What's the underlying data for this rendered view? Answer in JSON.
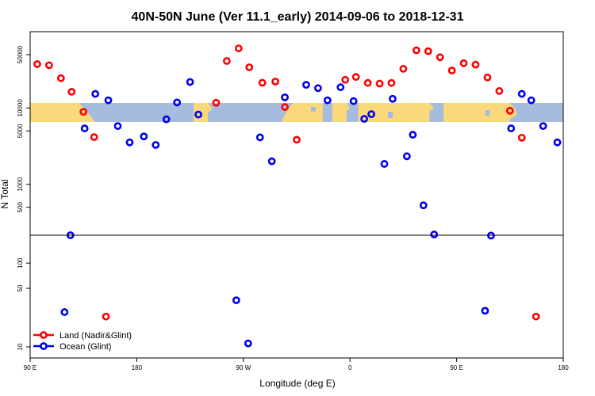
{
  "chart_data": {
    "type": "scatter",
    "title": "40N-50N June (Ver 11.1_early)   2014-09-06 to 2018-12-31",
    "xlabel": "Longitude (deg E)",
    "ylabel": "N Total",
    "x_ticks": [
      {
        "value": 90,
        "label": "90 E"
      },
      {
        "value": 180,
        "label": "180"
      },
      {
        "value": 270,
        "label": "90 W"
      },
      {
        "value": 360,
        "label": "0"
      },
      {
        "value": 450,
        "label": "90 E"
      },
      {
        "value": 540,
        "label": "180"
      }
    ],
    "y_ticks": [
      {
        "value": 10,
        "label": "10"
      },
      {
        "value": 50,
        "label": "50"
      },
      {
        "value": 100,
        "label": "100"
      },
      {
        "value": 500,
        "label": "500"
      },
      {
        "value": 1000,
        "label": "1000"
      },
      {
        "value": 5000,
        "label": "5000"
      },
      {
        "value": 10000,
        "label": "10000"
      },
      {
        "value": 50000,
        "label": "50000"
      }
    ],
    "scale_note": "log scale, broken axis at ~215 (lower panel 10-215, upper panel 215-100000)",
    "map_band_latitude": "40N-50N",
    "colors": {
      "land": "#ff0000",
      "ocean": "#0000ee",
      "map_ocean": "#a5bcdf",
      "map_land": "#f9d97a"
    },
    "legend": {
      "position": "bottom-left",
      "entries": [
        {
          "name": "Land (Nadir&Glint)",
          "color": "#ff0000"
        },
        {
          "name": "Ocean (Glint)",
          "color": "#0000ee"
        }
      ]
    },
    "series": [
      {
        "name": "Land (Nadir&Glint)",
        "color": "#ff0000",
        "points": [
          {
            "x": 96,
            "y": 37600
          },
          {
            "x": 106,
            "y": 36300
          },
          {
            "x": 116,
            "y": 24600
          },
          {
            "x": 125,
            "y": 16300
          },
          {
            "x": 135,
            "y": 8900
          },
          {
            "x": 144,
            "y": 4150
          },
          {
            "x": 154,
            "y": 23
          },
          {
            "x": 247,
            "y": 11700
          },
          {
            "x": 256,
            "y": 41300
          },
          {
            "x": 266,
            "y": 60400
          },
          {
            "x": 275,
            "y": 34100
          },
          {
            "x": 286,
            "y": 21400
          },
          {
            "x": 297,
            "y": 22200
          },
          {
            "x": 305,
            "y": 10300
          },
          {
            "x": 315,
            "y": 3840
          },
          {
            "x": 356,
            "y": 23400
          },
          {
            "x": 365,
            "y": 25500
          },
          {
            "x": 375,
            "y": 21300
          },
          {
            "x": 385,
            "y": 20900
          },
          {
            "x": 395,
            "y": 21300
          },
          {
            "x": 405,
            "y": 32600
          },
          {
            "x": 416,
            "y": 57000
          },
          {
            "x": 426,
            "y": 55500
          },
          {
            "x": 436,
            "y": 46200
          },
          {
            "x": 446,
            "y": 31000
          },
          {
            "x": 456,
            "y": 38600
          },
          {
            "x": 466,
            "y": 37000
          },
          {
            "x": 476,
            "y": 25100
          },
          {
            "x": 486,
            "y": 16700
          },
          {
            "x": 495,
            "y": 9200
          },
          {
            "x": 505,
            "y": 4080
          },
          {
            "x": 517,
            "y": 23
          }
        ]
      },
      {
        "name": "Ocean (Glint)",
        "color": "#0000ee",
        "points": [
          {
            "x": 119,
            "y": 26
          },
          {
            "x": 124,
            "y": 215
          },
          {
            "x": 136,
            "y": 5400
          },
          {
            "x": 145,
            "y": 15300
          },
          {
            "x": 156,
            "y": 12600
          },
          {
            "x": 164,
            "y": 5800
          },
          {
            "x": 174,
            "y": 3540
          },
          {
            "x": 186,
            "y": 4240
          },
          {
            "x": 196,
            "y": 3280
          },
          {
            "x": 205,
            "y": 7100
          },
          {
            "x": 214,
            "y": 11800
          },
          {
            "x": 225,
            "y": 21900
          },
          {
            "x": 232,
            "y": 8200
          },
          {
            "x": 264,
            "y": 36
          },
          {
            "x": 274,
            "y": 11
          },
          {
            "x": 284,
            "y": 4120
          },
          {
            "x": 294,
            "y": 2000
          },
          {
            "x": 305,
            "y": 13800
          },
          {
            "x": 323,
            "y": 20100
          },
          {
            "x": 333,
            "y": 18200
          },
          {
            "x": 341,
            "y": 12600
          },
          {
            "x": 352,
            "y": 18700
          },
          {
            "x": 363,
            "y": 12300
          },
          {
            "x": 372,
            "y": 7200
          },
          {
            "x": 378,
            "y": 8300
          },
          {
            "x": 389,
            "y": 1850
          },
          {
            "x": 396,
            "y": 13200
          },
          {
            "x": 408,
            "y": 2330
          },
          {
            "x": 413,
            "y": 4460
          },
          {
            "x": 422,
            "y": 530
          },
          {
            "x": 431,
            "y": 220
          },
          {
            "x": 474,
            "y": 27
          },
          {
            "x": 479,
            "y": 213
          },
          {
            "x": 496,
            "y": 5400
          },
          {
            "x": 505,
            "y": 15300
          },
          {
            "x": 513,
            "y": 12600
          },
          {
            "x": 523,
            "y": 5800
          },
          {
            "x": 535,
            "y": 3540
          }
        ]
      }
    ]
  }
}
